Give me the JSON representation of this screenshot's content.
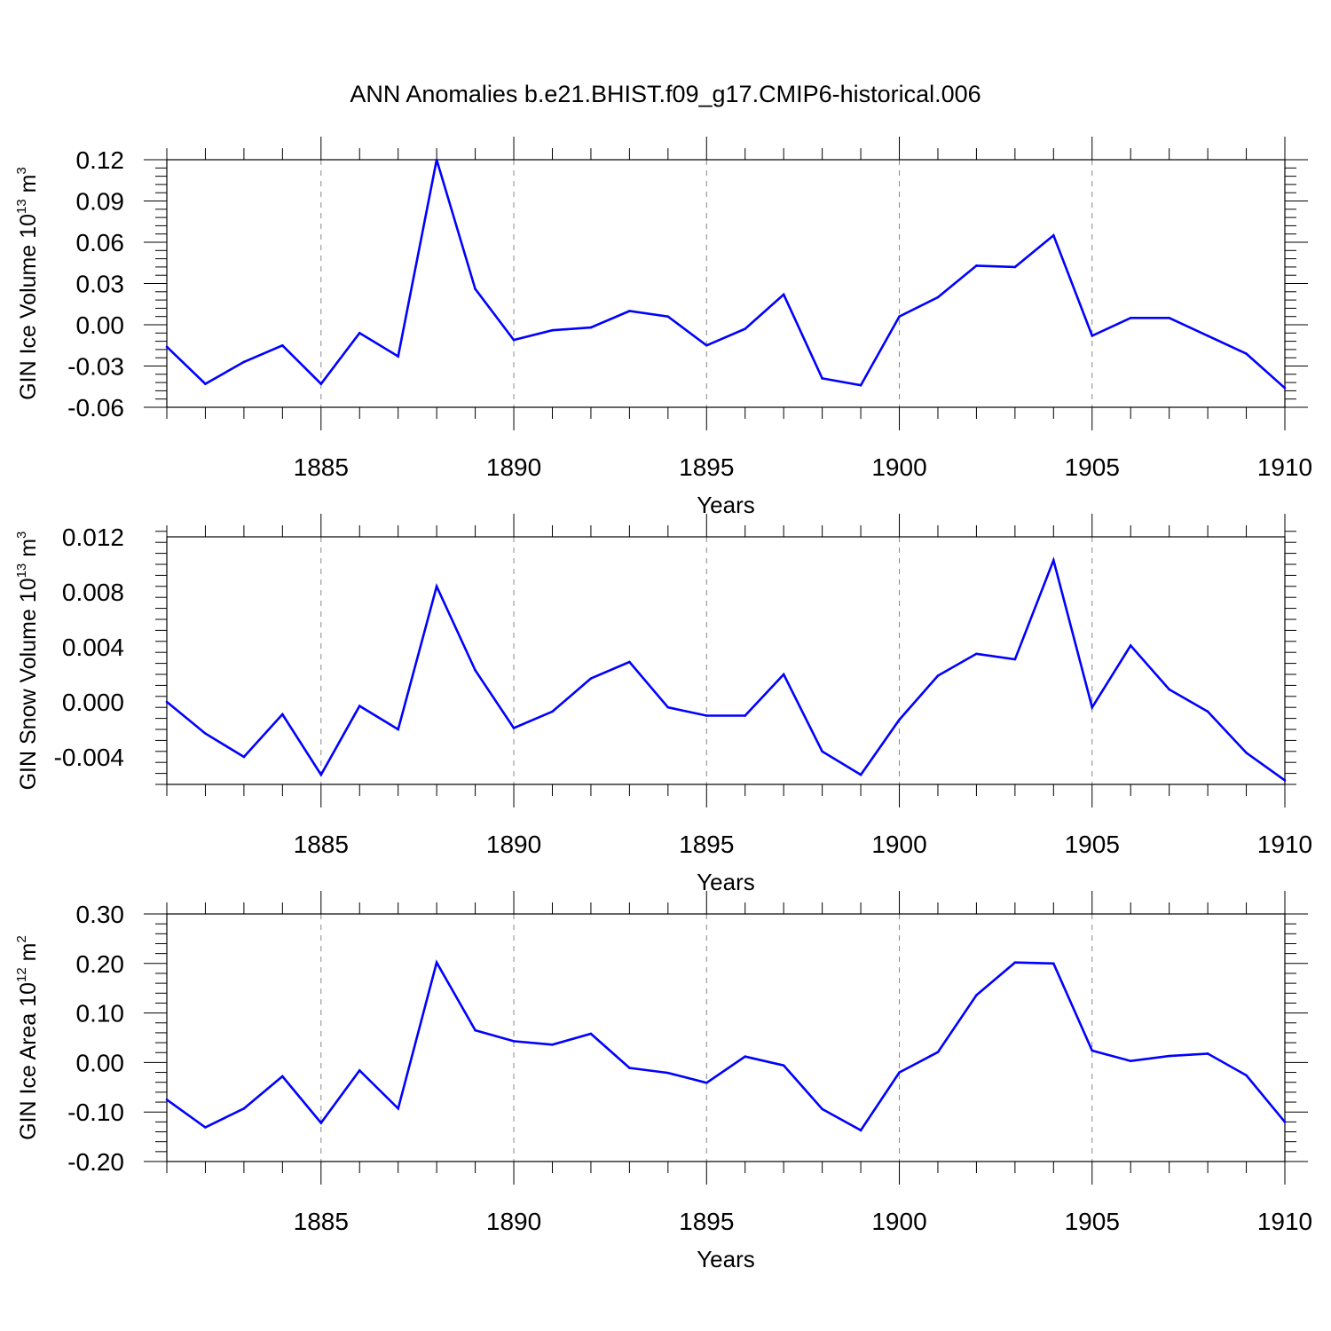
{
  "figure": {
    "title": "ANN Anomalies b.e21.BHIST.f09_g17.CMIP6-historical.006",
    "line_color": "#0000ff",
    "grid_color": "#888888"
  },
  "chart_data": [
    {
      "type": "line",
      "ylabel": {
        "text": "GIN Ice Volume 10",
        "exp": "13",
        "unit": " m",
        "unit_exp": "3"
      },
      "xlabel": "Years",
      "xlim": [
        1881,
        1910
      ],
      "ylim": [
        -0.06,
        0.12
      ],
      "yticks": [
        -0.06,
        -0.03,
        0.0,
        0.03,
        0.06,
        0.09,
        0.12
      ],
      "ytick_labels": [
        "-0.06",
        "-0.03",
        "0.00",
        "0.03",
        "0.06",
        "0.09",
        "0.12"
      ],
      "xticks": [
        1885,
        1890,
        1895,
        1900,
        1905,
        1910
      ],
      "xtick_labels": [
        "1885",
        "1890",
        "1895",
        "1900",
        "1905",
        "1910"
      ],
      "grid": "vertical dashed at labeled years",
      "x": [
        1881,
        1882,
        1883,
        1884,
        1885,
        1886,
        1887,
        1888,
        1889,
        1890,
        1891,
        1892,
        1893,
        1894,
        1895,
        1896,
        1897,
        1898,
        1899,
        1900,
        1901,
        1902,
        1903,
        1904,
        1905,
        1906,
        1907,
        1908,
        1909,
        1910
      ],
      "series": [
        {
          "values": [
            -0.016,
            -0.043,
            -0.027,
            -0.015,
            -0.043,
            -0.006,
            -0.023,
            0.12,
            0.026,
            -0.011,
            -0.004,
            -0.002,
            0.01,
            0.006,
            -0.015,
            -0.003,
            0.022,
            -0.039,
            -0.044,
            0.006,
            0.02,
            0.043,
            0.042,
            0.065,
            -0.008,
            0.005,
            0.005,
            -0.008,
            -0.021,
            -0.046
          ]
        }
      ]
    },
    {
      "type": "line",
      "ylabel": {
        "text": "GIN Snow Volume 10",
        "exp": "13",
        "unit": " m",
        "unit_exp": "3"
      },
      "xlabel": "Years",
      "xlim": [
        1881,
        1910
      ],
      "ylim": [
        -0.006,
        0.012
      ],
      "yticks": [
        -0.004,
        0.0,
        0.004,
        0.008,
        0.012
      ],
      "ytick_labels": [
        "-0.004",
        "0.000",
        "0.004",
        "0.008",
        "0.012"
      ],
      "xticks": [
        1885,
        1890,
        1895,
        1900,
        1905,
        1910
      ],
      "xtick_labels": [
        "1885",
        "1890",
        "1895",
        "1900",
        "1905",
        "1910"
      ],
      "grid": "vertical dashed at labeled years",
      "x": [
        1881,
        1882,
        1883,
        1884,
        1885,
        1886,
        1887,
        1888,
        1889,
        1890,
        1891,
        1892,
        1893,
        1894,
        1895,
        1896,
        1897,
        1898,
        1899,
        1900,
        1901,
        1902,
        1903,
        1904,
        1905,
        1906,
        1907,
        1908,
        1909,
        1910
      ],
      "series": [
        {
          "values": [
            0.0,
            -0.0023,
            -0.004,
            -0.0009,
            -0.0053,
            -0.0003,
            -0.002,
            0.0084,
            0.0023,
            -0.0019,
            -0.0007,
            0.0017,
            0.0029,
            -0.0004,
            -0.001,
            -0.001,
            0.002,
            -0.0036,
            -0.0053,
            -0.0013,
            0.0019,
            0.0035,
            0.0031,
            0.0103,
            -0.0004,
            0.0041,
            0.0009,
            -0.0007,
            -0.0037,
            -0.0057
          ]
        }
      ]
    },
    {
      "type": "line",
      "ylabel": {
        "text": "GIN Ice Area 10",
        "exp": "12",
        "unit": " m",
        "unit_exp": "2"
      },
      "xlabel": "Years",
      "xlim": [
        1881,
        1910
      ],
      "ylim": [
        -0.2,
        0.3
      ],
      "yticks": [
        -0.2,
        -0.1,
        0.0,
        0.1,
        0.2,
        0.3
      ],
      "ytick_labels": [
        "-0.20",
        "-0.10",
        "0.00",
        "0.10",
        "0.20",
        "0.30"
      ],
      "xticks": [
        1885,
        1890,
        1895,
        1900,
        1905,
        1910
      ],
      "xtick_labels": [
        "1885",
        "1890",
        "1895",
        "1900",
        "1905",
        "1910"
      ],
      "grid": "vertical dashed at labeled years",
      "x": [
        1881,
        1882,
        1883,
        1884,
        1885,
        1886,
        1887,
        1888,
        1889,
        1890,
        1891,
        1892,
        1893,
        1894,
        1895,
        1896,
        1897,
        1898,
        1899,
        1900,
        1901,
        1902,
        1903,
        1904,
        1905,
        1906,
        1907,
        1908,
        1909,
        1910
      ],
      "series": [
        {
          "values": [
            -0.075,
            -0.131,
            -0.093,
            -0.028,
            -0.122,
            -0.016,
            -0.093,
            0.202,
            0.065,
            0.043,
            0.036,
            0.058,
            -0.011,
            -0.021,
            -0.041,
            0.012,
            -0.006,
            -0.094,
            -0.137,
            -0.02,
            0.021,
            0.136,
            0.202,
            0.2,
            0.024,
            0.003,
            0.013,
            0.018,
            -0.026,
            -0.12
          ]
        }
      ]
    }
  ]
}
